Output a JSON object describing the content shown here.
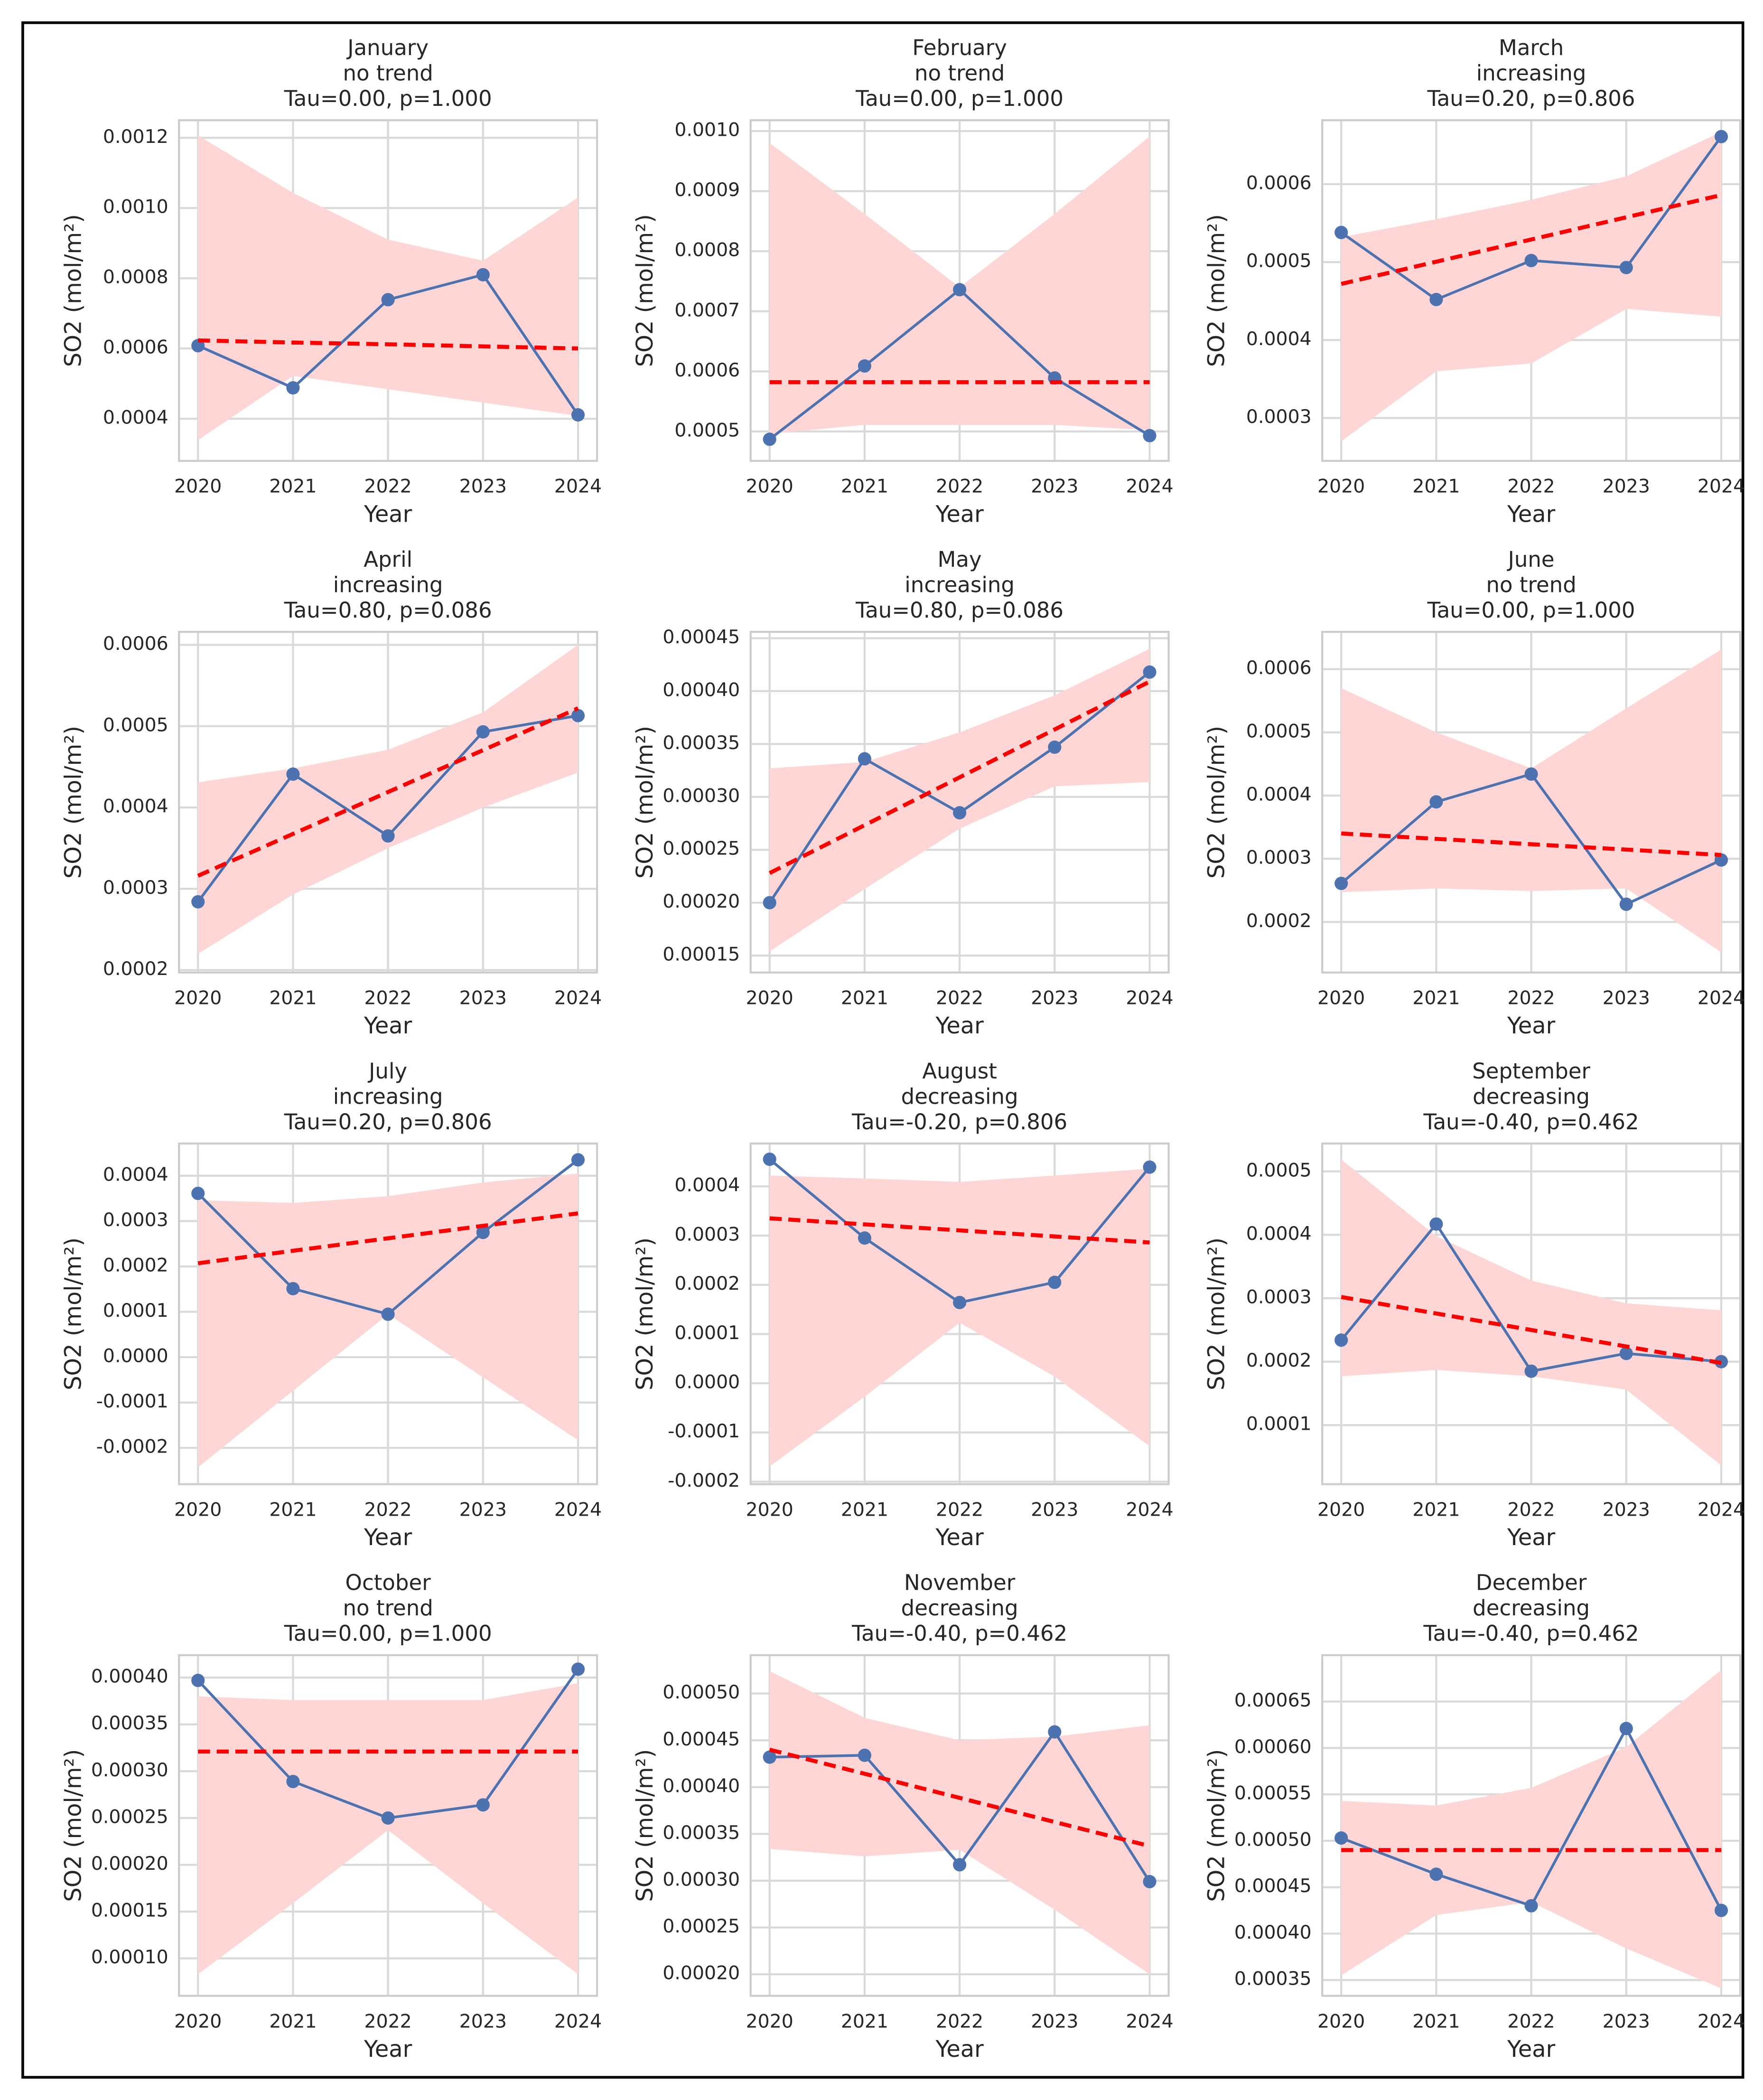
{
  "chart_data": [
    {
      "type": "line",
      "title": "January",
      "subtitle": "no trend",
      "annotation": "Tau=0.00, p=1.000",
      "x_label": "Year",
      "y_label": "SO2 (mol/m²)",
      "x": [
        2020,
        2021,
        2022,
        2023,
        2024
      ],
      "xlim": [
        2019.8,
        2024.2
      ],
      "xticks": [
        2020,
        2021,
        2022,
        2023,
        2024
      ],
      "ylim": [
        0.00028,
        0.00125
      ],
      "yticks": [
        0.0004,
        0.0006,
        0.0008,
        {
          "value": 0.001,
          "label": "0.0010"
        },
        0.0012
      ],
      "grid": true,
      "band": {
        "color": "#ffd6d6",
        "lower": [
          0.000339,
          0.000522,
          0.000484,
          0.000446,
          0.000408
        ],
        "upper": [
          0.001207,
          0.001043,
          0.00091,
          0.00085,
          0.00103
        ]
      },
      "series": [
        {
          "color": "#4c72b0",
          "style": "solid",
          "values": [
            0.000608,
            0.000488,
            0.000739,
            0.00081,
            0.000411
          ]
        },
        {
          "color": "#ff0000",
          "style": "dashed",
          "values": [
            0.000623,
            0.000617,
            0.000612,
            0.000606,
            0.0006
          ]
        }
      ]
    },
    {
      "type": "line",
      "title": "February",
      "subtitle": "no trend",
      "annotation": "Tau=0.00, p=1.000",
      "x_label": "Year",
      "y_label": "SO2 (mol/m²)",
      "x": [
        2020,
        2021,
        2022,
        2023,
        2024
      ],
      "xlim": [
        2019.8,
        2024.2
      ],
      "xticks": [
        2020,
        2021,
        2022,
        2023,
        2024
      ],
      "ylim": [
        0.000451,
        0.001018
      ],
      "yticks": [
        0.0005,
        0.0006,
        0.0007,
        0.0008,
        0.0009,
        {
          "value": 0.001,
          "label": "0.0010"
        }
      ],
      "grid": true,
      "band": {
        "color": "#ffd6d6",
        "lower": [
          0.000496,
          0.000511,
          0.000511,
          0.000511,
          0.000502
        ],
        "upper": [
          0.00098,
          0.000862,
          0.00074,
          0.000862,
          0.000991
        ]
      },
      "series": [
        {
          "color": "#4c72b0",
          "style": "solid",
          "values": [
            0.000487,
            0.000609,
            0.000736,
            0.000589,
            0.000493
          ]
        },
        {
          "color": "#ff0000",
          "style": "dashed",
          "values": [
            0.000582,
            0.000582,
            0.000582,
            0.000582,
            0.000582
          ]
        }
      ]
    },
    {
      "type": "line",
      "title": "March",
      "subtitle": "increasing",
      "annotation": "Tau=0.20, p=0.806",
      "x_label": "Year",
      "y_label": "SO2 (mol/m²)",
      "x": [
        2020,
        2021,
        2022,
        2023,
        2024
      ],
      "xlim": [
        2019.8,
        2024.2
      ],
      "xticks": [
        2020,
        2021,
        2022,
        2023,
        2024
      ],
      "ylim": [
        0.000245,
        0.000682
      ],
      "yticks": [
        0.0003,
        0.0004,
        0.0005,
        0.0006
      ],
      "grid": true,
      "band": {
        "color": "#ffd6d6",
        "lower": [
          0.00027,
          0.00036,
          0.00037,
          0.00044,
          0.00043
        ],
        "upper": [
          0.000532,
          0.000555,
          0.00058,
          0.00061,
          0.000667
        ]
      },
      "series": [
        {
          "color": "#4c72b0",
          "style": "solid",
          "values": [
            0.000538,
            0.000452,
            0.000502,
            0.000493,
            0.000661
          ]
        },
        {
          "color": "#ff0000",
          "style": "dashed",
          "values": [
            0.000472,
            0.0005005,
            0.000529,
            0.0005575,
            0.000586
          ]
        }
      ]
    },
    {
      "type": "line",
      "title": "April",
      "subtitle": "increasing",
      "annotation": "Tau=0.80, p=0.086",
      "x_label": "Year",
      "y_label": "SO2 (mol/m²)",
      "x": [
        2020,
        2021,
        2022,
        2023,
        2024
      ],
      "xlim": [
        2019.8,
        2024.2
      ],
      "xticks": [
        2020,
        2021,
        2022,
        2023,
        2024
      ],
      "ylim": [
        0.000197,
        0.000616
      ],
      "yticks": [
        0.0002,
        0.0003,
        0.0004,
        0.0005,
        0.0006
      ],
      "grid": true,
      "band": {
        "color": "#ffd6d6",
        "lower": [
          0.00022,
          0.000293,
          0.00035,
          0.0004,
          0.000443
        ],
        "upper": [
          0.000431,
          0.000448,
          0.000471,
          0.000517,
          0.0006
        ]
      },
      "series": [
        {
          "color": "#4c72b0",
          "style": "solid",
          "values": [
            0.000284,
            0.000441,
            0.000365,
            0.000493,
            0.000513
          ]
        },
        {
          "color": "#ff0000",
          "style": "dashed",
          "values": [
            0.000316,
            0.0003675,
            0.000419,
            0.0004705,
            0.000522
          ]
        }
      ]
    },
    {
      "type": "line",
      "title": "May",
      "subtitle": "increasing",
      "annotation": "Tau=0.80, p=0.086",
      "x_label": "Year",
      "y_label": "SO2 (mol/m²)",
      "x": [
        2020,
        2021,
        2022,
        2023,
        2024
      ],
      "xlim": [
        2019.8,
        2024.2
      ],
      "xticks": [
        2020,
        2021,
        2022,
        2023,
        2024
      ],
      "ylim": [
        0.000134,
        0.000456
      ],
      "yticks": [
        0.00015,
        {
          "value": 0.0002,
          "label": "0.00020"
        },
        0.00025,
        {
          "value": 0.0003,
          "label": "0.00030"
        },
        0.00035,
        {
          "value": 0.0004,
          "label": "0.00040"
        },
        0.00045
      ],
      "grid": true,
      "band": {
        "color": "#ffd6d6",
        "lower": [
          0.000154,
          0.000213,
          0.00027,
          0.00031,
          0.000314
        ],
        "upper": [
          0.000327,
          0.000333,
          0.000361,
          0.000396,
          0.00044
        ]
      },
      "series": [
        {
          "color": "#4c72b0",
          "style": "solid",
          "values": [
            0.0002,
            0.000336,
            0.000285,
            0.000347,
            0.000418
          ]
        },
        {
          "color": "#ff0000",
          "style": "dashed",
          "values": [
            0.000228,
            0.00027325,
            0.0003185,
            0.00036375,
            0.000409
          ]
        }
      ]
    },
    {
      "type": "line",
      "title": "June",
      "subtitle": "no trend",
      "annotation": "Tau=0.00, p=1.000",
      "x_label": "Year",
      "y_label": "SO2 (mol/m²)",
      "x": [
        2020,
        2021,
        2022,
        2023,
        2024
      ],
      "xlim": [
        2019.8,
        2024.2
      ],
      "xticks": [
        2020,
        2021,
        2022,
        2023,
        2024
      ],
      "ylim": [
        0.00012,
        0.000659
      ],
      "yticks": [
        0.0002,
        0.0003,
        0.0004,
        0.0005,
        0.0006
      ],
      "grid": true,
      "band": {
        "color": "#ffd6d6",
        "lower": [
          0.000247,
          0.000253,
          0.000249,
          0.000253,
          0.000152
        ],
        "upper": [
          0.00057,
          0.0005,
          0.000443,
          0.000538,
          0.000631
        ]
      },
      "series": [
        {
          "color": "#4c72b0",
          "style": "solid",
          "values": [
            0.000261,
            0.00039,
            0.000434,
            0.000228,
            0.000298
          ]
        },
        {
          "color": "#ff0000",
          "style": "dashed",
          "values": [
            0.00034,
            0.0003315,
            0.000323,
            0.0003145,
            0.000306
          ]
        }
      ]
    },
    {
      "type": "line",
      "title": "July",
      "subtitle": "increasing",
      "annotation": "Tau=0.20, p=0.806",
      "x_label": "Year",
      "y_label": "SO2 (mol/m²)",
      "x": [
        2020,
        2021,
        2022,
        2023,
        2024
      ],
      "xlim": [
        2019.8,
        2024.2
      ],
      "xticks": [
        2020,
        2021,
        2022,
        2023,
        2024
      ],
      "ylim": [
        -0.00028,
        0.000471
      ],
      "yticks": [
        -0.0002,
        -0.0001,
        {
          "value": 0,
          "label": "0.0000"
        },
        0.0001,
        0.0002,
        0.0003,
        0.0004
      ],
      "grid": true,
      "band": {
        "color": "#ffd6d6",
        "lower": [
          -0.000243,
          -7.4e-05,
          9.47e-05,
          -4.44e-05,
          -0.000183
        ],
        "upper": [
          0.000346,
          0.00034,
          0.000355,
          0.000385,
          0.000405
        ]
      },
      "series": [
        {
          "color": "#4c72b0",
          "style": "solid",
          "values": [
            0.000361,
            0.000151,
            9.47e-05,
            0.000275,
            0.000435
          ]
        },
        {
          "color": "#ff0000",
          "style": "dashed",
          "values": [
            0.000207,
            0.0002345,
            0.000262,
            0.0002895,
            0.000317
          ]
        }
      ]
    },
    {
      "type": "line",
      "title": "August",
      "subtitle": "decreasing",
      "annotation": "Tau=-0.20, p=0.806",
      "x_label": "Year",
      "y_label": "SO2 (mol/m²)",
      "x": [
        2020,
        2021,
        2022,
        2023,
        2024
      ],
      "xlim": [
        2019.8,
        2024.2
      ],
      "xticks": [
        2020,
        2021,
        2022,
        2023,
        2024
      ],
      "ylim": [
        -0.000205,
        0.000487
      ],
      "yticks": [
        -0.0002,
        -0.0001,
        {
          "value": 0,
          "label": "0.0000"
        },
        0.0001,
        0.0002,
        0.0003,
        0.0004
      ],
      "grid": true,
      "band": {
        "color": "#ffd6d6",
        "lower": [
          -0.000169,
          -2.73e-05,
          0.000123,
          1.36e-05,
          -0.000128
        ],
        "upper": [
          0.000422,
          0.000416,
          0.000409,
          0.000422,
          0.000436
        ]
      },
      "series": [
        {
          "color": "#4c72b0",
          "style": "solid",
          "values": [
            0.000455,
            0.000295,
            0.000164,
            0.000205,
            0.000439
          ]
        },
        {
          "color": "#ff0000",
          "style": "dashed",
          "values": [
            0.000335,
            0.00032275,
            0.0003105,
            0.00029825,
            0.000286
          ]
        }
      ]
    },
    {
      "type": "line",
      "title": "September",
      "subtitle": "decreasing",
      "annotation": "Tau=-0.40, p=0.462",
      "x_label": "Year",
      "y_label": "SO2 (mol/m²)",
      "x": [
        2020,
        2021,
        2022,
        2023,
        2024
      ],
      "xlim": [
        2019.8,
        2024.2
      ],
      "xticks": [
        2020,
        2021,
        2022,
        2023,
        2024
      ],
      "ylim": [
        6.9e-06,
        0.000544
      ],
      "yticks": [
        0.0001,
        0.0002,
        0.0003,
        0.0004,
        0.0005
      ],
      "grid": true,
      "band": {
        "color": "#ffd6d6",
        "lower": [
          0.000177,
          0.000187,
          0.000177,
          0.000156,
          3.65e-05
        ],
        "upper": [
          0.000519,
          0.000398,
          0.000328,
          0.000292,
          0.000281
        ]
      },
      "series": [
        {
          "color": "#4c72b0",
          "style": "solid",
          "values": [
            0.000234,
            0.000417,
            0.000185,
            0.000213,
            0.0002
          ]
        },
        {
          "color": "#ff0000",
          "style": "dashed",
          "values": [
            0.000302,
            0.000276,
            0.00025,
            0.000224,
            0.000198
          ]
        }
      ]
    },
    {
      "type": "line",
      "title": "October",
      "subtitle": "no trend",
      "annotation": "Tau=0.00, p=1.000",
      "x_label": "Year",
      "y_label": "SO2 (mol/m²)",
      "x": [
        2020,
        2021,
        2022,
        2023,
        2024
      ],
      "xlim": [
        2019.8,
        2024.2
      ],
      "xticks": [
        2020,
        2021,
        2022,
        2023,
        2024
      ],
      "ylim": [
        6e-05,
        0.000424
      ],
      "yticks": [
        {
          "value": 0.0001,
          "label": "0.00010"
        },
        0.00015,
        {
          "value": 0.0002,
          "label": "0.00020"
        },
        0.00025,
        {
          "value": 0.0003,
          "label": "0.00030"
        },
        0.00035,
        {
          "value": 0.0004,
          "label": "0.00040"
        }
      ],
      "grid": true,
      "band": {
        "color": "#ffd6d6",
        "lower": [
          8.3e-05,
          0.000159,
          0.000237,
          0.000159,
          8.3e-05
        ],
        "upper": [
          0.00038,
          0.000376,
          0.000376,
          0.000376,
          0.000394
        ]
      },
      "series": [
        {
          "color": "#4c72b0",
          "style": "solid",
          "values": [
            0.000397,
            0.000289,
            0.00025,
            0.000264,
            0.000409
          ]
        },
        {
          "color": "#ff0000",
          "style": "dashed",
          "values": [
            0.000321,
            0.000321,
            0.000321,
            0.000321,
            0.000321
          ]
        }
      ]
    },
    {
      "type": "line",
      "title": "November",
      "subtitle": "decreasing",
      "annotation": "Tau=-0.40, p=0.462",
      "x_label": "Year",
      "y_label": "SO2 (mol/m²)",
      "x": [
        2020,
        2021,
        2022,
        2023,
        2024
      ],
      "xlim": [
        2019.8,
        2024.2
      ],
      "xticks": [
        2020,
        2021,
        2022,
        2023,
        2024
      ],
      "ylim": [
        0.000177,
        0.000541
      ],
      "yticks": [
        {
          "value": 0.0002,
          "label": "0.00020"
        },
        0.00025,
        {
          "value": 0.0003,
          "label": "0.00030"
        },
        0.00035,
        {
          "value": 0.0004,
          "label": "0.00040"
        },
        0.00045,
        {
          "value": 0.0005,
          "label": "0.00050"
        }
      ],
      "grid": true,
      "band": {
        "color": "#ffd6d6",
        "lower": [
          0.000334,
          0.000326,
          0.000333,
          0.000269,
          0.0002
        ],
        "upper": [
          0.000524,
          0.000474,
          0.00045,
          0.000454,
          0.000466
        ]
      },
      "series": [
        {
          "color": "#4c72b0",
          "style": "solid",
          "values": [
            0.000432,
            0.000434,
            0.000317,
            0.000459,
            0.000299
          ]
        },
        {
          "color": "#ff0000",
          "style": "dashed",
          "values": [
            0.00044,
            0.00041425,
            0.0003885,
            0.00036275,
            0.000337
          ]
        }
      ]
    },
    {
      "type": "line",
      "title": "December",
      "subtitle": "decreasing",
      "annotation": "Tau=-0.40, p=0.462",
      "x_label": "Year",
      "y_label": "SO2 (mol/m²)",
      "x": [
        2020,
        2021,
        2022,
        2023,
        2024
      ],
      "xlim": [
        2019.8,
        2024.2
      ],
      "xticks": [
        2020,
        2021,
        2022,
        2023,
        2024
      ],
      "ylim": [
        0.000333,
        0.0007
      ],
      "yticks": [
        0.00035,
        {
          "value": 0.0004,
          "label": "0.00040"
        },
        0.00045,
        {
          "value": 0.0005,
          "label": "0.00050"
        },
        0.00055,
        {
          "value": 0.0006,
          "label": "0.00060"
        },
        0.00065
      ],
      "grid": true,
      "band": {
        "color": "#ffd6d6",
        "lower": [
          0.000355,
          0.00042,
          0.000434,
          0.000384,
          0.000341
        ],
        "upper": [
          0.000543,
          0.000538,
          0.000557,
          0.000601,
          0.000684
        ]
      },
      "series": [
        {
          "color": "#4c72b0",
          "style": "solid",
          "values": [
            0.000503,
            0.000464,
            0.00043,
            0.000621,
            0.000425
          ]
        },
        {
          "color": "#ff0000",
          "style": "dashed",
          "values": [
            0.00049,
            0.00049,
            0.00049,
            0.00049,
            0.00049
          ]
        }
      ]
    }
  ]
}
